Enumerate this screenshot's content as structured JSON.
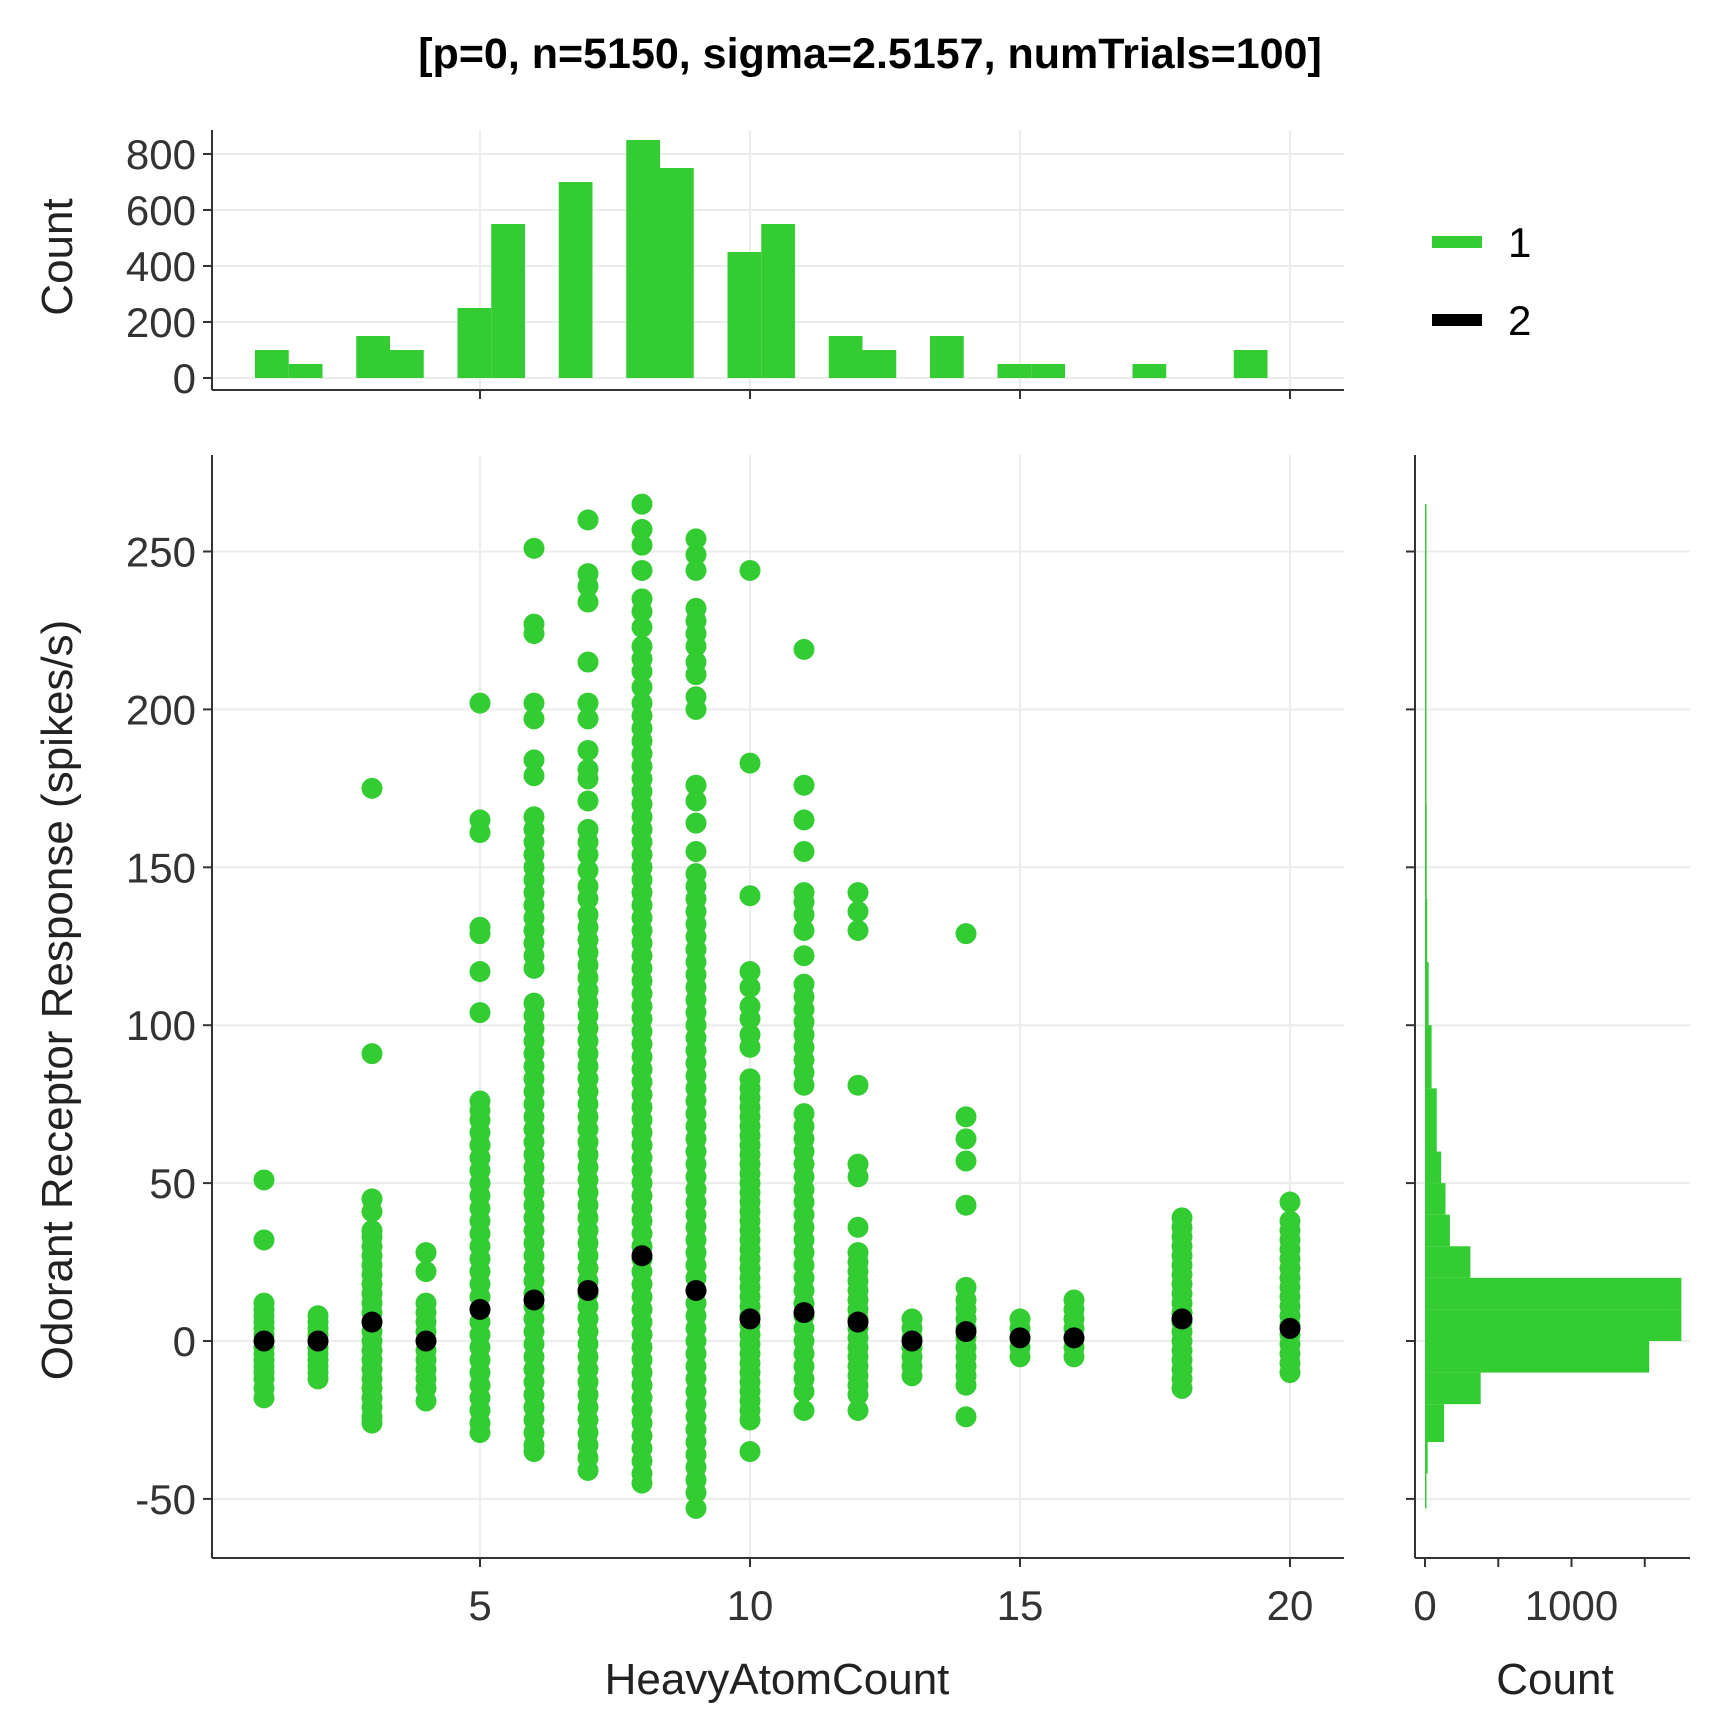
{
  "chart_data": {
    "type": "scatter",
    "title": "[p=0, n=5150, sigma=2.5157, numTrials=100]",
    "xlabel": "HeavyAtomCount",
    "ylabel": "Odorant Receptor Response (spikes/s)",
    "xlim": [
      0,
      21
    ],
    "ylim": [
      -68,
      280
    ],
    "xticks": [
      5,
      10,
      15,
      20
    ],
    "yticks": [
      -50,
      0,
      50,
      100,
      150,
      200,
      250
    ],
    "grid": true,
    "colors": {
      "series1": "#33cc33",
      "series2": "#000000"
    },
    "legend": {
      "placement": "top-right",
      "entries": [
        {
          "label": "1",
          "color": "#33cc33"
        },
        {
          "label": "2",
          "color": "#000000"
        }
      ]
    },
    "series": [
      {
        "name": "1",
        "groups": [
          {
            "x": 1,
            "values": [
              51,
              32,
              12,
              10,
              8,
              6,
              4,
              2,
              0,
              -2,
              -4,
              -6,
              -8,
              -10,
              -12,
              -15,
              -18
            ]
          },
          {
            "x": 2,
            "values": [
              8,
              6,
              4,
              2,
              0,
              -2,
              -4,
              -6,
              -8,
              -10,
              -12
            ]
          },
          {
            "x": 3,
            "values": [
              175,
              91,
              45,
              41,
              35,
              33,
              30,
              27,
              24,
              21,
              18,
              15,
              12,
              9,
              6,
              3,
              0,
              -3,
              -6,
              -9,
              -12,
              -15,
              -18,
              -21,
              -24,
              -26
            ]
          },
          {
            "x": 4,
            "values": [
              28,
              22,
              12,
              9,
              6,
              3,
              0,
              -3,
              -6,
              -9,
              -12,
              -15,
              -19
            ]
          },
          {
            "x": 5,
            "values": [
              202,
              165,
              161,
              131,
              129,
              117,
              104,
              76,
              73,
              70,
              66,
              62,
              58,
              54,
              50,
              46,
              42,
              38,
              34,
              30,
              26,
              22,
              18,
              14,
              10,
              6,
              2,
              -2,
              -6,
              -10,
              -14,
              -18,
              -22,
              -26,
              -29
            ]
          },
          {
            "x": 6,
            "values": [
              251,
              227,
              224,
              202,
              197,
              184,
              179,
              166,
              162,
              158,
              154,
              150,
              146,
              142,
              138,
              134,
              130,
              126,
              122,
              118,
              107,
              103,
              99,
              95,
              91,
              87,
              83,
              79,
              75,
              71,
              67,
              63,
              59,
              55,
              51,
              47,
              43,
              39,
              35,
              31,
              27,
              23,
              19,
              15,
              11,
              7,
              3,
              -1,
              -5,
              -9,
              -13,
              -17,
              -21,
              -25,
              -29,
              -33,
              -35
            ]
          },
          {
            "x": 7,
            "values": [
              260,
              243,
              239,
              234,
              215,
              202,
              197,
              187,
              181,
              178,
              171,
              162,
              158,
              154,
              149,
              144,
              140,
              135,
              131,
              127,
              123,
              119,
              115,
              111,
              107,
              103,
              99,
              95,
              91,
              87,
              83,
              79,
              75,
              71,
              67,
              63,
              59,
              55,
              51,
              47,
              43,
              39,
              35,
              31,
              27,
              23,
              19,
              15,
              11,
              7,
              3,
              -1,
              -5,
              -9,
              -13,
              -17,
              -21,
              -25,
              -29,
              -33,
              -37,
              -41
            ]
          },
          {
            "x": 8,
            "values": [
              265,
              257,
              252,
              244,
              235,
              231,
              226,
              220,
              216,
              212,
              207,
              202,
              198,
              194,
              190,
              186,
              182,
              178,
              174,
              170,
              166,
              162,
              158,
              154,
              150,
              146,
              142,
              138,
              134,
              130,
              126,
              122,
              118,
              114,
              110,
              106,
              102,
              98,
              94,
              90,
              86,
              82,
              78,
              74,
              70,
              66,
              62,
              58,
              54,
              50,
              46,
              42,
              38,
              34,
              30,
              26,
              22,
              18,
              14,
              10,
              6,
              2,
              -2,
              -6,
              -10,
              -14,
              -18,
              -22,
              -26,
              -30,
              -34,
              -38,
              -42,
              -45
            ]
          },
          {
            "x": 9,
            "values": [
              254,
              249,
              244,
              232,
              228,
              224,
              220,
              215,
              211,
              204,
              200,
              176,
              171,
              164,
              155,
              148,
              144,
              140,
              136,
              132,
              128,
              124,
              120,
              116,
              112,
              108,
              104,
              100,
              96,
              92,
              88,
              84,
              80,
              76,
              72,
              68,
              64,
              60,
              56,
              52,
              48,
              44,
              40,
              36,
              32,
              28,
              24,
              20,
              16,
              12,
              8,
              4,
              0,
              -4,
              -8,
              -12,
              -16,
              -20,
              -24,
              -28,
              -32,
              -36,
              -40,
              -44,
              -48,
              -53
            ]
          },
          {
            "x": 10,
            "values": [
              244,
              183,
              141,
              117,
              112,
              106,
              102,
              97,
              93,
              83,
              80,
              77,
              74,
              71,
              68,
              65,
              62,
              59,
              56,
              53,
              50,
              47,
              44,
              41,
              38,
              35,
              32,
              29,
              26,
              23,
              20,
              17,
              14,
              11,
              8,
              5,
              2,
              -1,
              -4,
              -7,
              -10,
              -13,
              -16,
              -19,
              -22,
              -25,
              -35
            ]
          },
          {
            "x": 11,
            "values": [
              219,
              176,
              165,
              155,
              142,
              139,
              135,
              130,
              122,
              113,
              109,
              105,
              101,
              97,
              93,
              89,
              85,
              81,
              72,
              68,
              64,
              60,
              56,
              52,
              48,
              44,
              40,
              36,
              32,
              28,
              24,
              20,
              16,
              12,
              8,
              4,
              0,
              -4,
              -8,
              -12,
              -16,
              -22
            ]
          },
          {
            "x": 12,
            "values": [
              142,
              136,
              130,
              81,
              56,
              52,
              36,
              28,
              25,
              22,
              19,
              16,
              13,
              10,
              7,
              4,
              1,
              -2,
              -5,
              -8,
              -11,
              -14,
              -17,
              -22
            ]
          },
          {
            "x": 13,
            "values": [
              7,
              4,
              1,
              -2,
              -5,
              -8,
              -11
            ]
          },
          {
            "x": 14,
            "values": [
              129,
              71,
              64,
              57,
              43,
              17,
              13,
              10,
              7,
              4,
              1,
              -2,
              -5,
              -8,
              -11,
              -14,
              -24
            ]
          },
          {
            "x": 15,
            "values": [
              7,
              4,
              1,
              -2,
              -5
            ]
          },
          {
            "x": 16,
            "values": [
              13,
              10,
              7,
              4,
              1,
              -2,
              -5
            ]
          },
          {
            "x": 18,
            "values": [
              39,
              36,
              33,
              30,
              27,
              24,
              21,
              18,
              15,
              12,
              9,
              6,
              3,
              0,
              -3,
              -6,
              -9,
              -12,
              -15
            ]
          },
          {
            "x": 20,
            "values": [
              44,
              38,
              35,
              32,
              29,
              26,
              23,
              20,
              17,
              14,
              11,
              8,
              5,
              2,
              -1,
              -4,
              -7,
              -10
            ]
          }
        ]
      },
      {
        "name": "2",
        "points": [
          {
            "x": 1,
            "y": 0
          },
          {
            "x": 2,
            "y": 0
          },
          {
            "x": 3,
            "y": 6
          },
          {
            "x": 4,
            "y": 0
          },
          {
            "x": 5,
            "y": 10
          },
          {
            "x": 6,
            "y": 13
          },
          {
            "x": 7,
            "y": 16
          },
          {
            "x": 8,
            "y": 27
          },
          {
            "x": 9,
            "y": 16
          },
          {
            "x": 10,
            "y": 7
          },
          {
            "x": 11,
            "y": 9
          },
          {
            "x": 12,
            "y": 6
          },
          {
            "x": 13,
            "y": 0
          },
          {
            "x": 14,
            "y": 3
          },
          {
            "x": 15,
            "y": 1
          },
          {
            "x": 16,
            "y": 1
          },
          {
            "x": 18,
            "y": 7
          },
          {
            "x": 20,
            "y": 4
          }
        ]
      }
    ],
    "top_histogram": {
      "ylabel": "Count",
      "yticks": [
        0,
        200,
        400,
        600,
        800
      ],
      "ylim": [
        0,
        850
      ],
      "bin_width": 0.625,
      "bins": [
        {
          "x0": 1.0,
          "count": 100
        },
        {
          "x0": 1.625,
          "count": 50
        },
        {
          "x0": 2.875,
          "count": 150
        },
        {
          "x0": 3.5,
          "count": 100
        },
        {
          "x0": 4.75,
          "count": 250
        },
        {
          "x0": 5.375,
          "count": 550
        },
        {
          "x0": 6.625,
          "count": 700
        },
        {
          "x0": 7.875,
          "count": 850
        },
        {
          "x0": 8.5,
          "count": 750
        },
        {
          "x0": 9.75,
          "count": 450
        },
        {
          "x0": 10.375,
          "count": 550
        },
        {
          "x0": 11.625,
          "count": 150
        },
        {
          "x0": 12.25,
          "count": 100
        },
        {
          "x0": 13.5,
          "count": 150
        },
        {
          "x0": 14.75,
          "count": 50
        },
        {
          "x0": 15.375,
          "count": 50
        },
        {
          "x0": 17.25,
          "count": 50
        },
        {
          "x0": 19.125,
          "count": 100
        }
      ]
    },
    "right_histogram": {
      "xlabel": "Count",
      "xticks": [
        0,
        1000
      ],
      "xlim": [
        -50,
        1800
      ],
      "bins": [
        {
          "y0": 250,
          "y1": 265,
          "count": 3
        },
        {
          "y0": 200,
          "y1": 250,
          "count": 6
        },
        {
          "y0": 170,
          "y1": 200,
          "count": 8
        },
        {
          "y0": 140,
          "y1": 170,
          "count": 12
        },
        {
          "y0": 120,
          "y1": 140,
          "count": 15
        },
        {
          "y0": 100,
          "y1": 120,
          "count": 25
        },
        {
          "y0": 80,
          "y1": 100,
          "count": 45
        },
        {
          "y0": 60,
          "y1": 80,
          "count": 80
        },
        {
          "y0": 50,
          "y1": 60,
          "count": 110
        },
        {
          "y0": 40,
          "y1": 50,
          "count": 140
        },
        {
          "y0": 30,
          "y1": 40,
          "count": 170
        },
        {
          "y0": 20,
          "y1": 30,
          "count": 310
        },
        {
          "y0": 10,
          "y1": 20,
          "count": 1750
        },
        {
          "y0": 0,
          "y1": 10,
          "count": 1750
        },
        {
          "y0": -10,
          "y1": 0,
          "count": 1530
        },
        {
          "y0": -20,
          "y1": -10,
          "count": 380
        },
        {
          "y0": -32,
          "y1": -20,
          "count": 130
        },
        {
          "y0": -42,
          "y1": -32,
          "count": 18
        },
        {
          "y0": -53,
          "y1": -42,
          "count": 5
        }
      ]
    }
  }
}
